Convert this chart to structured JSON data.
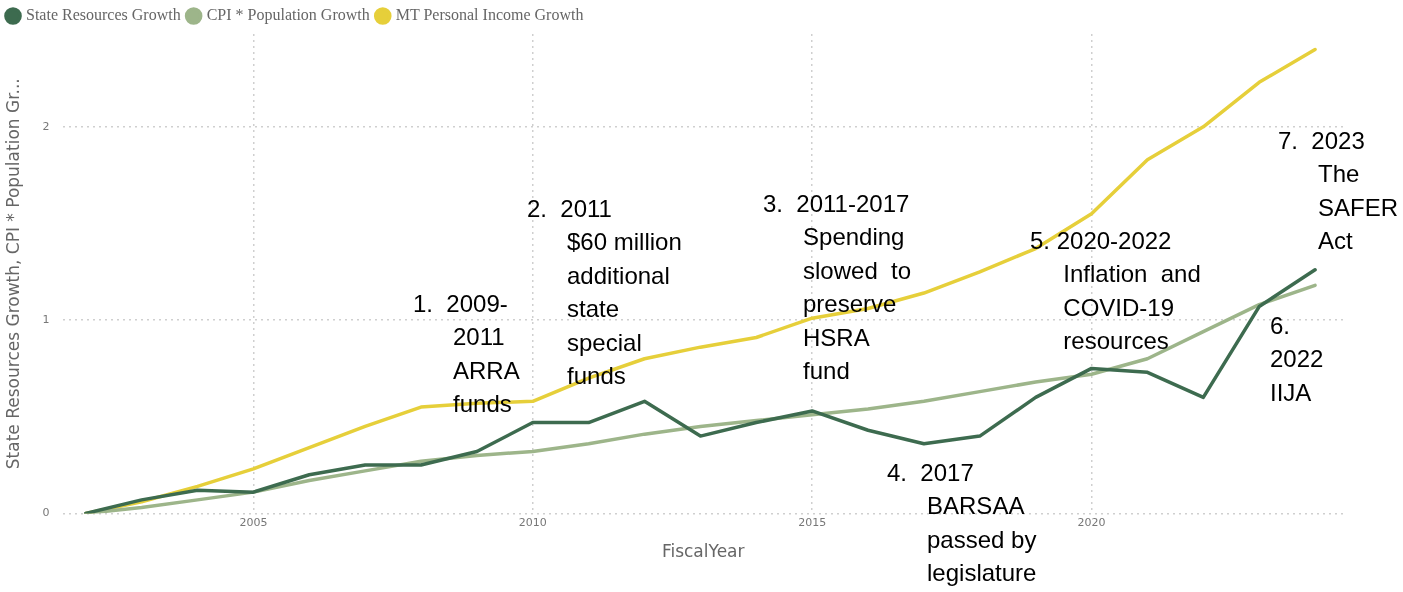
{
  "chart_data": {
    "type": "line",
    "xlabel": "FiscalYear",
    "ylabel": "State Resources Growth, CPI * Population Gr...",
    "x": [
      2002,
      2003,
      2004,
      2005,
      2006,
      2007,
      2008,
      2009,
      2010,
      2011,
      2012,
      2013,
      2014,
      2015,
      2016,
      2017,
      2018,
      2019,
      2020,
      2021,
      2022,
      2023,
      2024
    ],
    "series": [
      {
        "name": "State Resources Growth",
        "color": "#3d6b4f",
        "values": [
          0,
          0.07,
          0.12,
          0.11,
          0.2,
          0.25,
          0.25,
          0.32,
          0.47,
          0.47,
          0.58,
          0.4,
          0.47,
          0.53,
          0.43,
          0.36,
          0.4,
          0.6,
          0.75,
          0.73,
          0.6,
          1.07,
          1.26
        ]
      },
      {
        "name": "CPI * Population Growth",
        "color": "#9db58a",
        "values": [
          0,
          0.03,
          0.07,
          0.11,
          0.17,
          0.22,
          0.27,
          0.3,
          0.32,
          0.36,
          0.41,
          0.45,
          0.48,
          0.51,
          0.54,
          0.58,
          0.63,
          0.68,
          0.72,
          0.8,
          0.94,
          1.08,
          1.18
        ]
      },
      {
        "name": "MT Personal Income Growth",
        "color": "#e6cf3a",
        "values": [
          0,
          0.06,
          0.14,
          0.23,
          0.34,
          0.45,
          0.55,
          0.57,
          0.58,
          0.7,
          0.8,
          0.86,
          0.91,
          1.01,
          1.06,
          1.14,
          1.25,
          1.37,
          1.55,
          1.83,
          2.0,
          2.23,
          2.4
        ]
      }
    ],
    "xlim": [
      2001.6,
      2024.5
    ],
    "xticks": [
      2005,
      2010,
      2015,
      2020
    ],
    "ylim": [
      0,
      2.48
    ],
    "yticks": [
      0,
      1,
      2
    ],
    "grid": true,
    "legend": "top left",
    "marker": "none",
    "line_style": "solid",
    "annotations": [
      "1.  2009-\n2011\nARRA\nfunds",
      "2.  2011\n$60 million\nadditional\nstate\nspecial\nfunds",
      "3.  2011-2017\nSpending\nslowed  to\npreserve\nHSRA\nfund",
      "4.  2017\nBARSAA\npassed by\nlegislature",
      "5. 2020-2022\nInflation  and\nCOVID-19\nresources",
      "6.\n2022\nIIJA",
      "7.  2023\nThe\nSAFER\nAct"
    ]
  }
}
